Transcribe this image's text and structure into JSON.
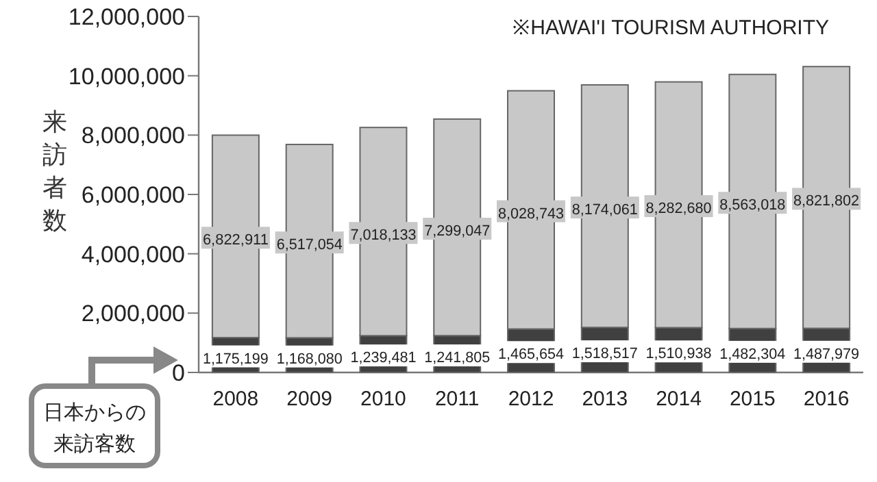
{
  "chart_data": {
    "type": "bar",
    "stacked": true,
    "categories": [
      "2008",
      "2009",
      "2010",
      "2011",
      "2012",
      "2013",
      "2014",
      "2015",
      "2016"
    ],
    "ylabel": "来訪者数",
    "ylim": [
      0,
      12000000
    ],
    "yticks": [
      {
        "value": 0,
        "label": "0"
      },
      {
        "value": 2000000,
        "label": "2,000,000"
      },
      {
        "value": 4000000,
        "label": "4,000,000"
      },
      {
        "value": 6000000,
        "label": "6,000,000"
      },
      {
        "value": 8000000,
        "label": "8,000,000"
      },
      {
        "value": 10000000,
        "label": "10,000,000"
      },
      {
        "value": 12000000,
        "label": "12,000,000"
      }
    ],
    "series": [
      {
        "color": "#404040",
        "values": [
          1175199,
          1168080,
          1239481,
          1241805,
          1465654,
          1518517,
          1510938,
          1482304,
          1487979
        ],
        "value_labels": [
          "1,175,199",
          "1,168,080",
          "1,239,481",
          "1,241,805",
          "1,465,654",
          "1,518,517",
          "1,510,938",
          "1,482,304",
          "1,487,979"
        ]
      },
      {
        "color": "#c8c8c8",
        "values": [
          6822911,
          6517054,
          7018133,
          7299047,
          8028743,
          8174061,
          8282680,
          8563018,
          8821802
        ],
        "value_labels": [
          "6,822,911",
          "6,517,054",
          "7,018,133",
          "7,299,047",
          "8,028,743",
          "8,174,061",
          "8,282,680",
          "8,563,018",
          "8,821,802"
        ]
      }
    ],
    "annotations": [
      "※HAWAI'I TOURISM  AUTHORITY",
      "日本からの来訪客数"
    ]
  }
}
